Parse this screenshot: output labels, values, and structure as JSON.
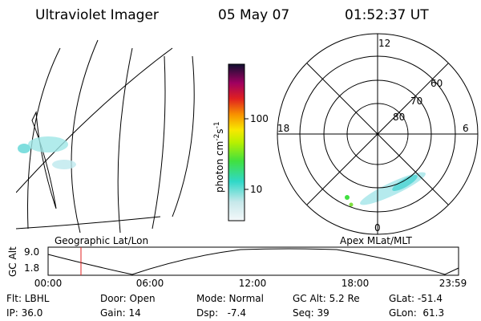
{
  "header": {
    "title": "Ultraviolet Imager",
    "date": "05 May 07",
    "time": "01:52:37 UT"
  },
  "colorbar": {
    "unit": [
      "photon cm",
      "-2",
      "s",
      "-1"
    ],
    "ticks": [
      "100",
      "10"
    ]
  },
  "polar": {
    "mlt": [
      "12",
      "18",
      "6",
      "0"
    ],
    "mlat": [
      "60",
      "70",
      "80"
    ]
  },
  "panels": {
    "left": "Geographic Lat/Lon",
    "right": "Apex MLat/MLT"
  },
  "altitude": {
    "label": "GC Alt",
    "ticks": [
      "9.0",
      "1.8"
    ],
    "times": [
      "00:00",
      "06:00",
      "12:00",
      "18:00",
      "23:59"
    ]
  },
  "footer": [
    [
      "Flt: LBHL",
      "IP: 36.0"
    ],
    [
      "Door: Open",
      "Gain: 14"
    ],
    [
      "Mode: Normal",
      "Dsp:   -7.4"
    ],
    [
      "GC Alt: 5.2 Re",
      "Seq: 39"
    ],
    [
      "GLat: -51.4",
      "GLon:  61.3"
    ]
  ]
}
